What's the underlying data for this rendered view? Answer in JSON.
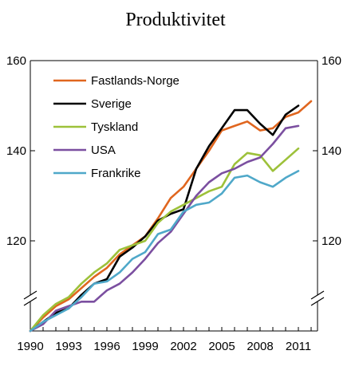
{
  "chart_data": {
    "type": "line",
    "title": "Produktivitet",
    "xlabel": "",
    "ylabel": "",
    "xlim": [
      1990,
      2012.5
    ],
    "ylim": [
      100,
      160
    ],
    "x_ticks": [
      1990,
      1993,
      1996,
      1999,
      2002,
      2005,
      2008,
      2011
    ],
    "y_ticks_left": [
      120,
      140,
      160
    ],
    "y_ticks_right": [
      120,
      140,
      160
    ],
    "axis_break": true,
    "grid": false,
    "legend_position": "top-left",
    "series": [
      {
        "name": "Fastlands-Norge",
        "color": "#E0661F",
        "x": [
          1990,
          1991,
          1992,
          1993,
          1994,
          1995,
          1996,
          1997,
          1998,
          1999,
          2000,
          2001,
          2002,
          2003,
          2004,
          2005,
          2006,
          2007,
          2008,
          2009,
          2010,
          2011,
          2012
        ],
        "values": [
          100,
          103,
          105.5,
          107,
          109.5,
          112,
          114,
          117,
          119,
          121,
          125,
          129.5,
          132,
          136,
          140,
          144.5,
          145.5,
          146.5,
          144.5,
          145,
          147.5,
          148.5,
          151
        ]
      },
      {
        "name": "Sverige",
        "color": "#000000",
        "x": [
          1990,
          1991,
          1992,
          1993,
          1994,
          1995,
          1996,
          1997,
          1998,
          1999,
          2000,
          2001,
          2002,
          2003,
          2004,
          2005,
          2006,
          2007,
          2008,
          2009,
          2010,
          2011
        ],
        "values": [
          100,
          102,
          104,
          105,
          108,
          110.5,
          111.5,
          116.5,
          118.5,
          121,
          124.5,
          126,
          127,
          136,
          141,
          145,
          149,
          149,
          146,
          143.5,
          148,
          150
        ]
      },
      {
        "name": "Tyskland",
        "color": "#9DC13A",
        "x": [
          1990,
          1991,
          1992,
          1993,
          1994,
          1995,
          1996,
          1997,
          1998,
          1999,
          2000,
          2001,
          2002,
          2003,
          2004,
          2005,
          2006,
          2007,
          2008,
          2009,
          2010,
          2011
        ],
        "values": [
          100,
          103.5,
          106,
          107.5,
          110.5,
          113,
          115,
          118,
          119,
          120,
          124,
          126.5,
          128,
          129.5,
          131,
          132,
          137,
          139.5,
          139,
          135.5,
          138,
          140.5
        ]
      },
      {
        "name": "USA",
        "color": "#7B4FA0",
        "x": [
          1990,
          1991,
          1992,
          1993,
          1994,
          1995,
          1996,
          1997,
          1998,
          1999,
          2000,
          2001,
          2002,
          2003,
          2004,
          2005,
          2006,
          2007,
          2008,
          2009,
          2010,
          2011
        ],
        "values": [
          100,
          101.5,
          104.5,
          105.5,
          106.5,
          106.5,
          109,
          110.5,
          113,
          116,
          119.5,
          122,
          126,
          130,
          133,
          135,
          136,
          137.5,
          138.5,
          141.5,
          145,
          145.5
        ]
      },
      {
        "name": "Frankrike",
        "color": "#4FA8C9",
        "x": [
          1990,
          1991,
          1992,
          1993,
          1994,
          1995,
          1996,
          1997,
          1998,
          1999,
          2000,
          2001,
          2002,
          2003,
          2004,
          2005,
          2006,
          2007,
          2008,
          2009,
          2010,
          2011
        ],
        "values": [
          100,
          102,
          103.5,
          105,
          107.5,
          110.5,
          111,
          113,
          116,
          117.5,
          121.5,
          122.5,
          126.5,
          128,
          128.5,
          130.5,
          134,
          134.5,
          133,
          132,
          134,
          135.5
        ]
      }
    ]
  }
}
